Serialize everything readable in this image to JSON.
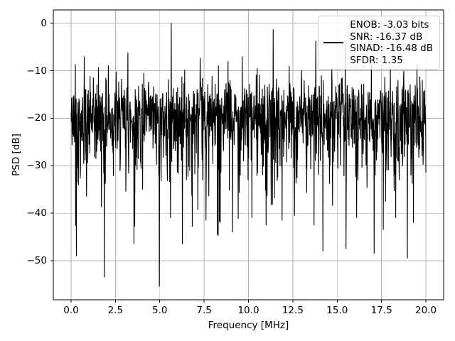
{
  "figure": {
    "background": "#ffffff",
    "text_color": "#000000"
  },
  "chart_data": {
    "type": "line",
    "title": "",
    "xlabel": "Frequency [MHz]",
    "ylabel": "PSD [dB]",
    "xlim": [
      -1,
      21
    ],
    "ylim": [
      -58.2,
      2.78
    ],
    "grid": {
      "on": true,
      "color": "#b0b0b0"
    },
    "series_color": "#000000",
    "xticks": {
      "values": [
        0,
        2.5,
        5,
        7.5,
        10,
        12.5,
        15,
        17.5,
        20
      ],
      "labels": [
        "0.0",
        "2.5",
        "5.0",
        "7.5",
        "10.0",
        "12.5",
        "15.0",
        "17.5",
        "20.0"
      ]
    },
    "yticks": {
      "values": [
        0,
        -10,
        -20,
        -30,
        -40,
        -50
      ],
      "labels": [
        "0",
        "−10",
        "−20",
        "−30",
        "−40",
        "−50"
      ]
    },
    "legend": {
      "position": "upper right",
      "line_color": "#000000",
      "border_color": "#cccccc",
      "lines": [
        "ENOB: -3.03 bits",
        "SNR: -16.37 dB",
        "SINAD: -16.48 dB",
        "SFDR: 1.35"
      ]
    },
    "metrics": {
      "enob_bits": -3.03,
      "snr_db": -16.37,
      "sinad_db": -16.48,
      "sfdr": 1.35
    },
    "noise": {
      "description": "broadband noise floor of PSD, dense band approx -13 to -30 dB",
      "n_points": 1400,
      "x_start": 0,
      "x_end": 20,
      "base_db": -18.5,
      "cap_high_db": -10.5,
      "cap_low_db": -45,
      "seed": 42
    },
    "peaks": [
      {
        "f": 0.25,
        "db": -8.7
      },
      {
        "f": 0.75,
        "db": -7.0
      },
      {
        "f": 1.55,
        "db": -9.3
      },
      {
        "f": 2.1,
        "db": -8.9
      },
      {
        "f": 2.55,
        "db": -10.2
      },
      {
        "f": 3.2,
        "db": -6.2
      },
      {
        "f": 4.1,
        "db": -10.5
      },
      {
        "f": 5.65,
        "db": 0.0
      },
      {
        "f": 6.4,
        "db": -9.8
      },
      {
        "f": 7.27,
        "db": -7.3
      },
      {
        "f": 8.3,
        "db": -8.9
      },
      {
        "f": 8.85,
        "db": -8.0
      },
      {
        "f": 9.65,
        "db": -7.0
      },
      {
        "f": 10.5,
        "db": -9.5
      },
      {
        "f": 11.4,
        "db": -1.3
      },
      {
        "f": 12.3,
        "db": -9.0
      },
      {
        "f": 13.0,
        "db": -9.9
      },
      {
        "f": 13.8,
        "db": -3.7
      },
      {
        "f": 14.7,
        "db": -9.4
      },
      {
        "f": 15.45,
        "db": -4.8
      },
      {
        "f": 16.92,
        "db": -8.3
      },
      {
        "f": 18.0,
        "db": -9.3
      },
      {
        "f": 18.75,
        "db": -10.0
      },
      {
        "f": 19.5,
        "db": -8.7
      }
    ],
    "notches": [
      {
        "f": 0.3,
        "db": -49.0
      },
      {
        "f": 1.87,
        "db": -53.5
      },
      {
        "f": 3.55,
        "db": -46.5
      },
      {
        "f": 4.97,
        "db": -55.4
      },
      {
        "f": 5.6,
        "db": -41.0
      },
      {
        "f": 6.27,
        "db": -46.5
      },
      {
        "f": 7.6,
        "db": -41.5
      },
      {
        "f": 8.4,
        "db": -42.0
      },
      {
        "f": 9.1,
        "db": -44.0
      },
      {
        "f": 10.2,
        "db": -41.0
      },
      {
        "f": 11.0,
        "db": -42.5
      },
      {
        "f": 11.9,
        "db": -41.5
      },
      {
        "f": 12.6,
        "db": -40.5
      },
      {
        "f": 13.7,
        "db": -42.5
      },
      {
        "f": 14.2,
        "db": -48.0
      },
      {
        "f": 15.5,
        "db": -47.5
      },
      {
        "f": 16.1,
        "db": -41.0
      },
      {
        "f": 17.08,
        "db": -48.5
      },
      {
        "f": 17.6,
        "db": -43.5
      },
      {
        "f": 18.3,
        "db": -41.0
      },
      {
        "f": 18.95,
        "db": -49.5
      },
      {
        "f": 19.3,
        "db": -42.0
      }
    ]
  }
}
